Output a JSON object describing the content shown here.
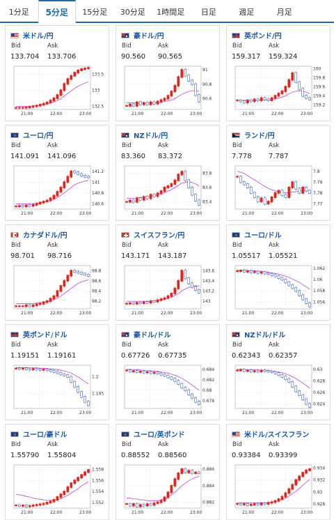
{
  "tabs": [
    {
      "label": "1分足",
      "active": false
    },
    {
      "label": "5分足",
      "active": true
    },
    {
      "label": "15分足",
      "active": false
    },
    {
      "label": "30分足",
      "active": false
    },
    {
      "label": "1時間足",
      "active": false
    },
    {
      "label": "日足",
      "active": false
    },
    {
      "label": "週足",
      "active": false
    },
    {
      "label": "月足",
      "active": false
    }
  ],
  "colors": {
    "accent": "#1a67b4",
    "up": "#e0251b",
    "down": "#1e4fb0",
    "ma": "#c43fd8"
  },
  "labels": {
    "bid": "Bid",
    "ask": "Ask"
  },
  "x_ticks": [
    "21:00",
    "22:00",
    "23:00"
  ],
  "cards": [
    {
      "pair": "米ドル/円",
      "flag": "us-flag",
      "bid": "133.704",
      "ask": "133.706",
      "chart_data": {
        "type": "candlestick",
        "yticks": [
          "133.5",
          "133",
          "132.5"
        ],
        "ylim": [
          132.4,
          133.75
        ],
        "trend": [
          132.45,
          132.45,
          132.45,
          132.46,
          132.48,
          132.5,
          132.52,
          132.55,
          132.58,
          132.62,
          132.68,
          132.75,
          132.85,
          133.0,
          133.2,
          133.35,
          133.45,
          133.55,
          133.62,
          133.66,
          133.68,
          133.7
        ],
        "ma": [
          132.5,
          132.5,
          132.5,
          132.5,
          132.5,
          132.51,
          132.52,
          132.53,
          132.55,
          132.57,
          132.6,
          132.63,
          132.68,
          132.74,
          132.82,
          132.9,
          132.98,
          133.06,
          133.12,
          133.18,
          133.22,
          133.26
        ]
      }
    },
    {
      "pair": "豪ドル/円",
      "flag": "au-flag",
      "bid": "90.560",
      "ask": "90.565",
      "chart_data": {
        "type": "candlestick",
        "yticks": [
          "91",
          "90.8",
          "90.6"
        ],
        "ylim": [
          90.45,
          91.05
        ],
        "trend": [
          90.5,
          90.52,
          90.5,
          90.55,
          90.52,
          90.54,
          90.52,
          90.55,
          90.53,
          90.56,
          90.58,
          90.6,
          90.64,
          90.7,
          90.78,
          90.9,
          91.0,
          90.92,
          90.85,
          90.8,
          90.65,
          90.56
        ],
        "ma": [
          90.54,
          90.54,
          90.54,
          90.54,
          90.54,
          90.54,
          90.54,
          90.54,
          90.54,
          90.54,
          90.55,
          90.56,
          90.57,
          90.58,
          90.6,
          90.63,
          90.66,
          90.68,
          90.7,
          90.71,
          90.71,
          90.7
        ]
      }
    },
    {
      "pair": "英ポンド/円",
      "flag": "uk-flag",
      "bid": "159.317",
      "ask": "159.324",
      "chart_data": {
        "type": "candlestick",
        "yticks": [
          "160",
          "159.8",
          "159.6",
          "159.4",
          "159.2"
        ],
        "ylim": [
          159.1,
          160.05
        ],
        "trend": [
          159.3,
          159.28,
          159.25,
          159.3,
          159.28,
          159.32,
          159.3,
          159.35,
          159.32,
          159.3,
          159.35,
          159.4,
          159.45,
          159.5,
          159.6,
          159.75,
          159.9,
          159.7,
          159.55,
          159.4,
          159.35,
          159.32
        ],
        "ma": [
          159.3,
          159.3,
          159.3,
          159.3,
          159.3,
          159.3,
          159.3,
          159.31,
          159.31,
          159.31,
          159.32,
          159.33,
          159.35,
          159.37,
          159.4,
          159.44,
          159.48,
          159.5,
          159.51,
          159.5,
          159.48,
          159.45
        ]
      }
    },
    {
      "pair": "ユーロ/円",
      "flag": "eu-flag",
      "bid": "141.091",
      "ask": "141.096",
      "chart_data": {
        "type": "candlestick",
        "yticks": [
          "141.2",
          "141",
          "140.8",
          "140.6"
        ],
        "ylim": [
          140.5,
          141.3
        ],
        "trend": [
          140.55,
          140.56,
          140.55,
          140.57,
          140.56,
          140.58,
          140.6,
          140.62,
          140.64,
          140.66,
          140.7,
          140.75,
          140.82,
          140.9,
          141.0,
          141.1,
          141.2,
          141.18,
          141.15,
          141.12,
          141.1,
          141.09
        ],
        "ma": [
          140.6,
          140.6,
          140.6,
          140.6,
          140.6,
          140.6,
          140.61,
          140.62,
          140.63,
          140.64,
          140.66,
          140.68,
          140.71,
          140.75,
          140.8,
          140.85,
          140.9,
          140.95,
          140.98,
          141.0,
          141.02,
          141.03
        ]
      }
    },
    {
      "pair": "NZドル/円",
      "flag": "nz-flag",
      "bid": "83.360",
      "ask": "83.372",
      "chart_data": {
        "type": "candlestick",
        "yticks": [
          "83.8",
          "83.6",
          "83.4"
        ],
        "ylim": [
          83.3,
          83.9
        ],
        "trend": [
          83.4,
          83.42,
          83.4,
          83.45,
          83.43,
          83.47,
          83.45,
          83.5,
          83.48,
          83.52,
          83.55,
          83.6,
          83.62,
          83.65,
          83.7,
          83.78,
          83.82,
          83.7,
          83.6,
          83.5,
          83.42,
          83.36
        ],
        "ma": [
          83.45,
          83.45,
          83.45,
          83.46,
          83.46,
          83.47,
          83.47,
          83.48,
          83.49,
          83.5,
          83.51,
          83.53,
          83.55,
          83.57,
          83.6,
          83.63,
          83.66,
          83.67,
          83.68,
          83.67,
          83.65,
          83.62
        ]
      }
    },
    {
      "pair": "ランド/円",
      "flag": "za-flag",
      "bid": "7.778",
      "ask": "7.787",
      "chart_data": {
        "type": "candlestick",
        "yticks": [
          "7.8",
          "7.79",
          "7.78",
          "7.77"
        ],
        "ylim": [
          7.765,
          7.805
        ],
        "trend": [
          7.795,
          7.79,
          7.788,
          7.785,
          7.78,
          7.776,
          7.772,
          7.775,
          7.77,
          7.772,
          7.776,
          7.78,
          7.782,
          7.778,
          7.776,
          7.785,
          7.79,
          7.784,
          7.78,
          7.785,
          7.782,
          7.78
        ],
        "ma": [
          7.8,
          7.799,
          7.798,
          7.796,
          7.794,
          7.792,
          7.79,
          7.788,
          7.786,
          7.784,
          7.783,
          7.782,
          7.781,
          7.781,
          7.78,
          7.78,
          7.781,
          7.781,
          7.782,
          7.782,
          7.782,
          7.782
        ]
      }
    },
    {
      "pair": "カナダドル/円",
      "flag": "ca-flag",
      "bid": "98.701",
      "ask": "98.716",
      "chart_data": {
        "type": "candlestick",
        "yticks": [
          "98.8",
          "98.6",
          "98.4",
          "98.2"
        ],
        "ylim": [
          98.05,
          98.9
        ],
        "trend": [
          98.1,
          98.1,
          98.1,
          98.12,
          98.1,
          98.12,
          98.14,
          98.15,
          98.18,
          98.2,
          98.25,
          98.3,
          98.4,
          98.5,
          98.6,
          98.7,
          98.8,
          98.78,
          98.76,
          98.74,
          98.72,
          98.7
        ],
        "ma": [
          98.15,
          98.15,
          98.15,
          98.15,
          98.15,
          98.15,
          98.16,
          98.17,
          98.18,
          98.19,
          98.21,
          98.23,
          98.26,
          98.3,
          98.35,
          98.4,
          98.45,
          98.5,
          98.55,
          98.58,
          98.6,
          98.62
        ]
      }
    },
    {
      "pair": "スイスフラン/円",
      "flag": "ch-flag",
      "bid": "143.171",
      "ask": "143.187",
      "chart_data": {
        "type": "candlestick",
        "yticks": [
          "143.6",
          "143.4",
          "143.2",
          "143"
        ],
        "ylim": [
          142.85,
          143.7
        ],
        "trend": [
          142.95,
          142.96,
          142.95,
          142.97,
          142.96,
          142.98,
          142.97,
          143.0,
          142.99,
          143.02,
          143.04,
          143.06,
          143.1,
          143.15,
          143.25,
          143.4,
          143.6,
          143.45,
          143.35,
          143.28,
          143.22,
          143.17
        ],
        "ma": [
          143.0,
          143.0,
          143.0,
          143.0,
          143.0,
          143.0,
          143.0,
          143.0,
          143.01,
          143.02,
          143.03,
          143.04,
          143.06,
          143.08,
          143.11,
          143.15,
          143.2,
          143.24,
          143.27,
          143.29,
          143.3,
          143.3
        ]
      }
    },
    {
      "pair": "ユーロ/ドル",
      "flag": "eu-us-flag",
      "bid": "1.05517",
      "ask": "1.05521",
      "chart_data": {
        "type": "candlestick",
        "yticks": [
          "1.062",
          "1.06",
          "1.058",
          "1.056"
        ],
        "ylim": [
          1.0548,
          1.0625
        ],
        "trend": [
          1.0615,
          1.0616,
          1.0614,
          1.0615,
          1.0613,
          1.0614,
          1.0612,
          1.0613,
          1.0611,
          1.061,
          1.0608,
          1.0606,
          1.0603,
          1.06,
          1.0595,
          1.059,
          1.0585,
          1.058,
          1.0572,
          1.0565,
          1.0558,
          1.0552
        ],
        "ma": [
          1.0617,
          1.0617,
          1.0617,
          1.0616,
          1.0616,
          1.0616,
          1.0615,
          1.0615,
          1.0614,
          1.0613,
          1.0612,
          1.0611,
          1.061,
          1.0608,
          1.0606,
          1.0604,
          1.0601,
          1.0598,
          1.0595,
          1.0591,
          1.0587,
          1.0583
        ]
      }
    },
    {
      "pair": "英ポンド/ドル",
      "flag": "uk-us-flag",
      "bid": "1.19151",
      "ask": "1.19161",
      "chart_data": {
        "type": "candlestick",
        "yticks": [
          "1.2",
          "1.195"
        ],
        "ylim": [
          1.1905,
          1.2035
        ],
        "trend": [
          1.2025,
          1.2024,
          1.2025,
          1.2023,
          1.2022,
          1.2024,
          1.2022,
          1.2021,
          1.2022,
          1.202,
          1.2018,
          1.2015,
          1.2012,
          1.2008,
          1.2005,
          1.2,
          1.1985,
          1.197,
          1.1955,
          1.194,
          1.1925,
          1.1915
        ],
        "ma": [
          1.2028,
          1.2028,
          1.2028,
          1.2028,
          1.2027,
          1.2027,
          1.2027,
          1.2026,
          1.2026,
          1.2025,
          1.2024,
          1.2023,
          1.2022,
          1.202,
          1.2018,
          1.2015,
          1.2011,
          1.2006,
          1.2,
          1.1993,
          1.1986,
          1.1979
        ]
      }
    },
    {
      "pair": "豪ドル/ドル",
      "flag": "au-us-flag",
      "bid": "0.67726",
      "ask": "0.67735",
      "chart_data": {
        "type": "candlestick",
        "yticks": [
          "0.684",
          "0.682",
          "0.68",
          "0.678"
        ],
        "ylim": [
          0.6765,
          0.6848
        ],
        "trend": [
          0.6838,
          0.6836,
          0.6837,
          0.6835,
          0.6836,
          0.6834,
          0.6835,
          0.6833,
          0.6834,
          0.6832,
          0.683,
          0.6828,
          0.6825,
          0.6822,
          0.6818,
          0.6812,
          0.6805,
          0.68,
          0.6792,
          0.6785,
          0.6778,
          0.6773
        ],
        "ma": [
          0.684,
          0.684,
          0.684,
          0.6839,
          0.6839,
          0.6838,
          0.6838,
          0.6837,
          0.6837,
          0.6836,
          0.6835,
          0.6834,
          0.6833,
          0.6831,
          0.6829,
          0.6826,
          0.6823,
          0.6819,
          0.6815,
          0.681,
          0.6805,
          0.68
        ]
      }
    },
    {
      "pair": "NZドル/ドル",
      "flag": "nz-us-flag",
      "bid": "0.62343",
      "ask": "0.62357",
      "chart_data": {
        "type": "candlestick",
        "yticks": [
          "0.63",
          "0.628",
          "0.626",
          "0.624"
        ],
        "ylim": [
          0.6232,
          0.6307
        ],
        "trend": [
          0.6298,
          0.6299,
          0.6297,
          0.6298,
          0.6296,
          0.6297,
          0.6296,
          0.6298,
          0.6297,
          0.6296,
          0.6295,
          0.6293,
          0.629,
          0.6287,
          0.6283,
          0.6278,
          0.627,
          0.6262,
          0.6255,
          0.6248,
          0.624,
          0.6235
        ],
        "ma": [
          0.63,
          0.63,
          0.63,
          0.6299,
          0.6299,
          0.6299,
          0.6299,
          0.6298,
          0.6298,
          0.6298,
          0.6297,
          0.6296,
          0.6295,
          0.6294,
          0.6292,
          0.629,
          0.6287,
          0.6284,
          0.628,
          0.6276,
          0.6272,
          0.6267
        ]
      }
    },
    {
      "pair": "ユーロ/豪ドル",
      "flag": "eu-au-flag",
      "bid": "1.55790",
      "ask": "1.55804",
      "chart_data": {
        "type": "candlestick",
        "yticks": [
          "1.558",
          "1.556",
          "1.554",
          "1.552"
        ],
        "ylim": [
          1.551,
          1.5588
        ],
        "trend": [
          1.5515,
          1.5514,
          1.5515,
          1.5513,
          1.5514,
          1.5515,
          1.5516,
          1.5517,
          1.5518,
          1.552,
          1.5522,
          1.5525,
          1.553,
          1.5535,
          1.554,
          1.5548,
          1.5555,
          1.556,
          1.5565,
          1.557,
          1.5575,
          1.5579
        ],
        "ma": [
          1.5535,
          1.5534,
          1.5533,
          1.5531,
          1.553,
          1.5528,
          1.5527,
          1.5526,
          1.5525,
          1.5524,
          1.5524,
          1.5524,
          1.5525,
          1.5527,
          1.553,
          1.5533,
          1.5537,
          1.5541,
          1.5545,
          1.555,
          1.5554,
          1.5558
        ]
      }
    },
    {
      "pair": "ユーロ/英ポンド",
      "flag": "eu-uk-flag",
      "bid": "0.88552",
      "ask": "0.88560",
      "chart_data": {
        "type": "candlestick",
        "yticks": [
          "0.886",
          "0.884",
          "0.882"
        ],
        "ylim": [
          0.8813,
          0.8865
        ],
        "trend": [
          0.8818,
          0.8816,
          0.8818,
          0.8815,
          0.8817,
          0.8816,
          0.8818,
          0.8817,
          0.8819,
          0.882,
          0.8822,
          0.8826,
          0.8832,
          0.884,
          0.8848,
          0.8855,
          0.886,
          0.8856,
          0.8858,
          0.8855,
          0.8856,
          0.8855
        ],
        "ma": [
          0.8825,
          0.8825,
          0.8824,
          0.8824,
          0.8823,
          0.8823,
          0.8822,
          0.8822,
          0.8822,
          0.8822,
          0.8823,
          0.8824,
          0.8826,
          0.8829,
          0.8832,
          0.8836,
          0.884,
          0.8843,
          0.8846,
          0.8848,
          0.885,
          0.8851
        ]
      }
    },
    {
      "pair": "米ドル/スイスフラン",
      "flag": "us-ch-flag",
      "bid": "0.93384",
      "ask": "0.93399",
      "chart_data": {
        "type": "candlestick",
        "yticks": [
          "0.934",
          "0.932",
          "0.93",
          "0.928"
        ],
        "ylim": [
          0.9273,
          0.9345
        ],
        "trend": [
          0.928,
          0.9279,
          0.928,
          0.9278,
          0.9279,
          0.928,
          0.9279,
          0.9281,
          0.928,
          0.9282,
          0.9283,
          0.9285,
          0.9288,
          0.9292,
          0.9298,
          0.9305,
          0.9312,
          0.932,
          0.9326,
          0.9332,
          0.9336,
          0.9338
        ],
        "ma": [
          0.9282,
          0.9282,
          0.9282,
          0.9282,
          0.9282,
          0.9282,
          0.9282,
          0.9282,
          0.9282,
          0.9282,
          0.9283,
          0.9284,
          0.9285,
          0.9287,
          0.929,
          0.9293,
          0.9297,
          0.9301,
          0.9306,
          0.9311,
          0.9316,
          0.9321
        ]
      }
    }
  ]
}
